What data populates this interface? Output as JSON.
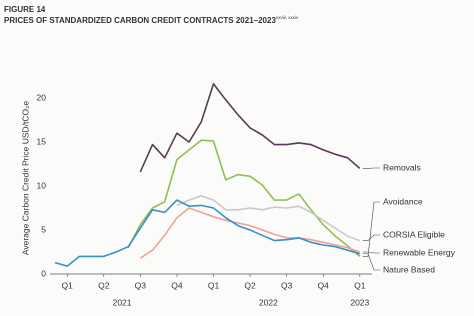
{
  "chart_data": {
    "type": "line",
    "figure_label": "FIGURE 14",
    "title": "PRICES OF STANDARDIZED CARBON CREDIT CONTRACTS 2021–2023",
    "title_superscript": "xxviii, xxxiv",
    "y_label": "Average Carbon Credit Price USD/tCO₂e",
    "xlim": [
      0,
      26
    ],
    "ylim": [
      0,
      22.5
    ],
    "yticks": [
      0,
      5,
      10,
      15,
      20
    ],
    "xticks": [
      {
        "value": 1,
        "label": "Q1"
      },
      {
        "value": 4,
        "label": "Q2"
      },
      {
        "value": 7,
        "label": "Q3"
      },
      {
        "value": 10,
        "label": "Q4"
      },
      {
        "value": 13,
        "label": "Q1"
      },
      {
        "value": 16,
        "label": "Q2"
      },
      {
        "value": 19,
        "label": "Q3"
      },
      {
        "value": 22,
        "label": "Q4"
      },
      {
        "value": 25,
        "label": "Q1"
      }
    ],
    "year_labels": [
      {
        "value": 5.5,
        "label": "2021"
      },
      {
        "value": 17.5,
        "label": "2022"
      },
      {
        "value": 25,
        "label": "2023"
      }
    ],
    "grid": false,
    "series": [
      {
        "name": "Removals",
        "color": "#5a3a58",
        "x": [
          7,
          8,
          9,
          10,
          11,
          12,
          13,
          14,
          15,
          16,
          17,
          18,
          19,
          20,
          21,
          22,
          23,
          24,
          25
        ],
        "values": [
          11.6,
          14.7,
          13.2,
          16.0,
          15.0,
          17.3,
          21.6,
          19.8,
          18.1,
          16.6,
          15.8,
          14.7,
          14.7,
          14.9,
          14.7,
          14.1,
          13.6,
          13.2,
          12.0
        ]
      },
      {
        "name": "Avoidance",
        "color": "#8cc152",
        "x": [
          6,
          7,
          8,
          9,
          10,
          11,
          12,
          13,
          14,
          15,
          16,
          17,
          18,
          19,
          20,
          21,
          22,
          23,
          24,
          25
        ],
        "values": [
          3.0,
          5.6,
          7.5,
          8.2,
          13.0,
          14.1,
          15.2,
          15.1,
          10.7,
          11.3,
          11.1,
          10.1,
          8.4,
          8.4,
          9.1,
          7.3,
          5.6,
          4.3,
          3.2,
          2.0
        ]
      },
      {
        "name": "CORSIA Eligible",
        "color": "#c9c9c9",
        "x": [
          10,
          11,
          12,
          13,
          14,
          15,
          16,
          17,
          18,
          19,
          20,
          21,
          22,
          23,
          24,
          25
        ],
        "values": [
          7.8,
          8.4,
          8.9,
          8.4,
          7.3,
          7.3,
          7.5,
          7.3,
          7.6,
          7.5,
          7.7,
          7.0,
          6.1,
          5.2,
          4.3,
          3.8
        ]
      },
      {
        "name": "Renewable Energy",
        "color": "#f0a196",
        "x": [
          7,
          8,
          9,
          10,
          11,
          12,
          13,
          14,
          15,
          16,
          17,
          18,
          19,
          20,
          21,
          22,
          23,
          24,
          25
        ],
        "values": [
          1.8,
          2.7,
          4.4,
          6.4,
          7.5,
          7.0,
          6.5,
          6.1,
          5.8,
          5.5,
          5.0,
          4.5,
          4.1,
          4.1,
          3.9,
          3.6,
          3.3,
          3.0,
          2.5
        ]
      },
      {
        "name": "Nature Based",
        "color": "#3a8fc8",
        "x": [
          0,
          1,
          2,
          3,
          4,
          5,
          6,
          7,
          8,
          9,
          10,
          11,
          12,
          13,
          14,
          15,
          16,
          17,
          18,
          19,
          20,
          21,
          22,
          23,
          24,
          25
        ],
        "values": [
          1.3,
          0.9,
          2.0,
          2.0,
          2.0,
          2.5,
          3.1,
          5.2,
          7.3,
          7.0,
          8.4,
          7.7,
          7.8,
          7.5,
          6.4,
          5.5,
          5.0,
          4.4,
          3.8,
          3.9,
          4.1,
          3.6,
          3.3,
          3.1,
          2.7,
          2.3
        ]
      }
    ]
  }
}
